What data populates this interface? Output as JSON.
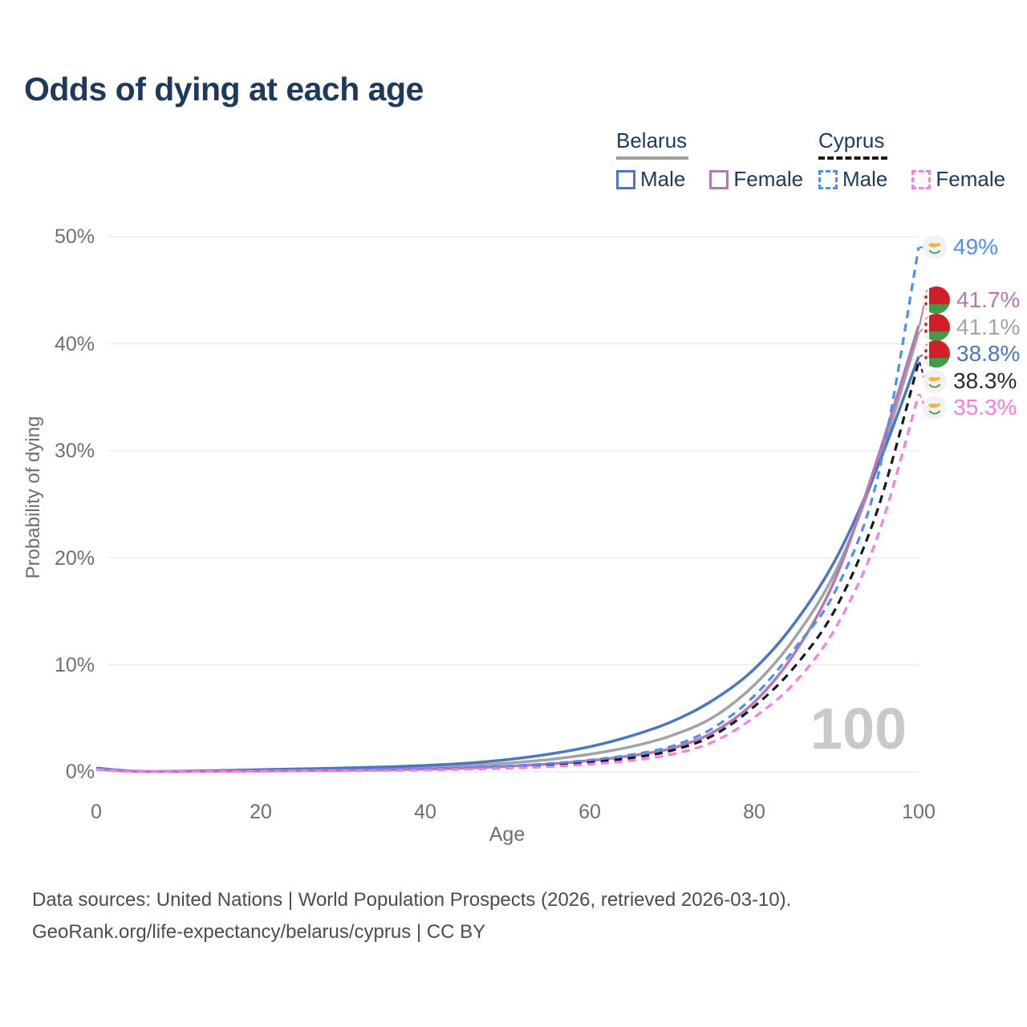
{
  "title": "Odds of dying at each age",
  "legend": {
    "groups": [
      {
        "country": "Belarus",
        "line_style": "solid",
        "line_color": "#9e9e9e",
        "items": [
          {
            "label": "Male",
            "color": "#4b77c0"
          },
          {
            "label": "Female",
            "color": "#b678b4"
          }
        ]
      },
      {
        "country": "Cyprus",
        "line_style": "dashed",
        "line_color": "#1a1a1a",
        "items": [
          {
            "label": "Male",
            "color": "#4a90f7"
          },
          {
            "label": "Female",
            "color": "#fc7ce0"
          }
        ]
      }
    ]
  },
  "chart_data": {
    "type": "line",
    "title": "Odds of dying at each age",
    "xlabel": "Age",
    "ylabel": "Probability of dying",
    "xlim": [
      0,
      100
    ],
    "ylim_percent": [
      0,
      50
    ],
    "xticks": [
      0,
      20,
      40,
      60,
      80,
      100
    ],
    "yticks": [
      "0%",
      "10%",
      "20%",
      "30%",
      "40%",
      "50%"
    ],
    "grid": "horizontal",
    "legend_position": "top-right",
    "watermark": "100",
    "x": [
      0,
      5,
      10,
      15,
      20,
      25,
      30,
      35,
      40,
      45,
      50,
      55,
      60,
      65,
      70,
      75,
      80,
      85,
      90,
      95,
      100
    ],
    "series": [
      {
        "name": "Belarus Both sexes",
        "country": "Belarus",
        "style": "solid",
        "color": "#a3a3a3",
        "values": [
          0.3,
          0.04,
          0.05,
          0.09,
          0.14,
          0.19,
          0.25,
          0.32,
          0.42,
          0.57,
          0.82,
          1.15,
          1.65,
          2.35,
          3.4,
          5.1,
          8.1,
          12.6,
          18.9,
          28.6,
          41.1
        ]
      },
      {
        "name": "Belarus Male",
        "country": "Belarus",
        "style": "solid",
        "color": "#4b77c0",
        "values": [
          0.35,
          0.05,
          0.06,
          0.12,
          0.2,
          0.28,
          0.36,
          0.46,
          0.6,
          0.8,
          1.15,
          1.65,
          2.35,
          3.35,
          4.7,
          6.7,
          9.6,
          14.0,
          20.0,
          28.5,
          38.8
        ]
      },
      {
        "name": "Belarus Female",
        "country": "Belarus",
        "style": "solid",
        "color": "#b678b4",
        "values": [
          0.25,
          0.03,
          0.04,
          0.06,
          0.08,
          0.11,
          0.14,
          0.19,
          0.26,
          0.36,
          0.52,
          0.73,
          1.05,
          1.5,
          2.2,
          3.7,
          6.5,
          11.2,
          18.3,
          29.3,
          41.7
        ]
      },
      {
        "name": "Cyprus Both sexes",
        "country": "Cyprus",
        "style": "dashed",
        "color": "#1a1a1a",
        "values": [
          0.25,
          0.03,
          0.03,
          0.06,
          0.09,
          0.11,
          0.14,
          0.17,
          0.23,
          0.31,
          0.43,
          0.62,
          0.9,
          1.3,
          2.0,
          3.4,
          6.1,
          9.9,
          15.4,
          24.5,
          38.3
        ]
      },
      {
        "name": "Cyprus Male",
        "country": "Cyprus",
        "style": "dashed",
        "color": "#4a90f7",
        "values": [
          0.3,
          0.03,
          0.04,
          0.07,
          0.11,
          0.14,
          0.17,
          0.22,
          0.29,
          0.39,
          0.54,
          0.77,
          1.1,
          1.6,
          2.4,
          4.1,
          7.1,
          11.6,
          17.1,
          27.5,
          49.0
        ]
      },
      {
        "name": "Cyprus Female",
        "country": "Cyprus",
        "style": "dashed",
        "color": "#fc7ce0",
        "values": [
          0.2,
          0.02,
          0.03,
          0.04,
          0.06,
          0.08,
          0.1,
          0.13,
          0.17,
          0.24,
          0.33,
          0.48,
          0.72,
          1.05,
          1.65,
          2.8,
          5.1,
          8.4,
          13.6,
          22.0,
          35.3
        ]
      }
    ],
    "end_labels": [
      {
        "text": "49%",
        "value": 49.0,
        "series": "Cyprus Male",
        "color": "#4a90f7",
        "flag": "cyprus-flag-icon"
      },
      {
        "text": "41.7%",
        "value": 41.7,
        "series": "Belarus Female",
        "color": "#b678b4",
        "flag": "belarus-flag-icon"
      },
      {
        "text": "41.1%",
        "value": 41.1,
        "series": "Belarus Both sexes",
        "color": "#a3a3a3",
        "flag": "belarus-flag-icon"
      },
      {
        "text": "38.8%",
        "value": 38.8,
        "series": "Belarus Male",
        "color": "#4b77c0",
        "flag": "belarus-flag-icon"
      },
      {
        "text": "38.3%",
        "value": 38.3,
        "series": "Cyprus Both sexes",
        "color": "#2b2b2b",
        "flag": "cyprus-flag-icon"
      },
      {
        "text": "35.3%",
        "value": 35.3,
        "series": "Cyprus Female",
        "color": "#fc7ce0",
        "flag": "cyprus-flag-icon"
      }
    ]
  },
  "footer": {
    "line1": "Data sources: United Nations | World Population Prospects (2026, retrieved 2026-03-10).",
    "line2": "GeoRank.org/life-expectancy/belarus/cyprus | CC BY"
  }
}
